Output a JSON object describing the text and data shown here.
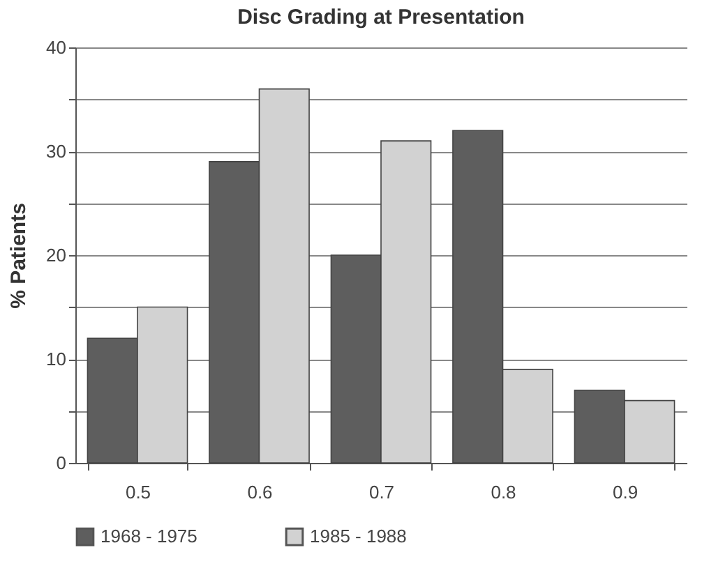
{
  "chart_data": {
    "type": "bar",
    "title": "Disc Grading at Presentation",
    "ylabel": "% Patients",
    "categories": [
      "0.5",
      "0.6",
      "0.7",
      "0.8",
      "0.9"
    ],
    "series": [
      {
        "name": "1968 - 1975",
        "color": "#5e5e5e",
        "values": [
          12,
          29,
          20,
          32,
          7
        ]
      },
      {
        "name": "1985 - 1988",
        "color": "#d2d2d2",
        "values": [
          15,
          36,
          31,
          9,
          6
        ]
      }
    ],
    "ylim": [
      0,
      40
    ],
    "yticks": [
      0,
      {
        "value": 5,
        "label": null
      },
      10,
      {
        "value": 15,
        "label": null
      },
      20,
      {
        "value": 25,
        "label": null
      },
      30,
      {
        "value": 35,
        "label": null
      },
      40
    ],
    "grid": "y",
    "legend": "bottom"
  }
}
